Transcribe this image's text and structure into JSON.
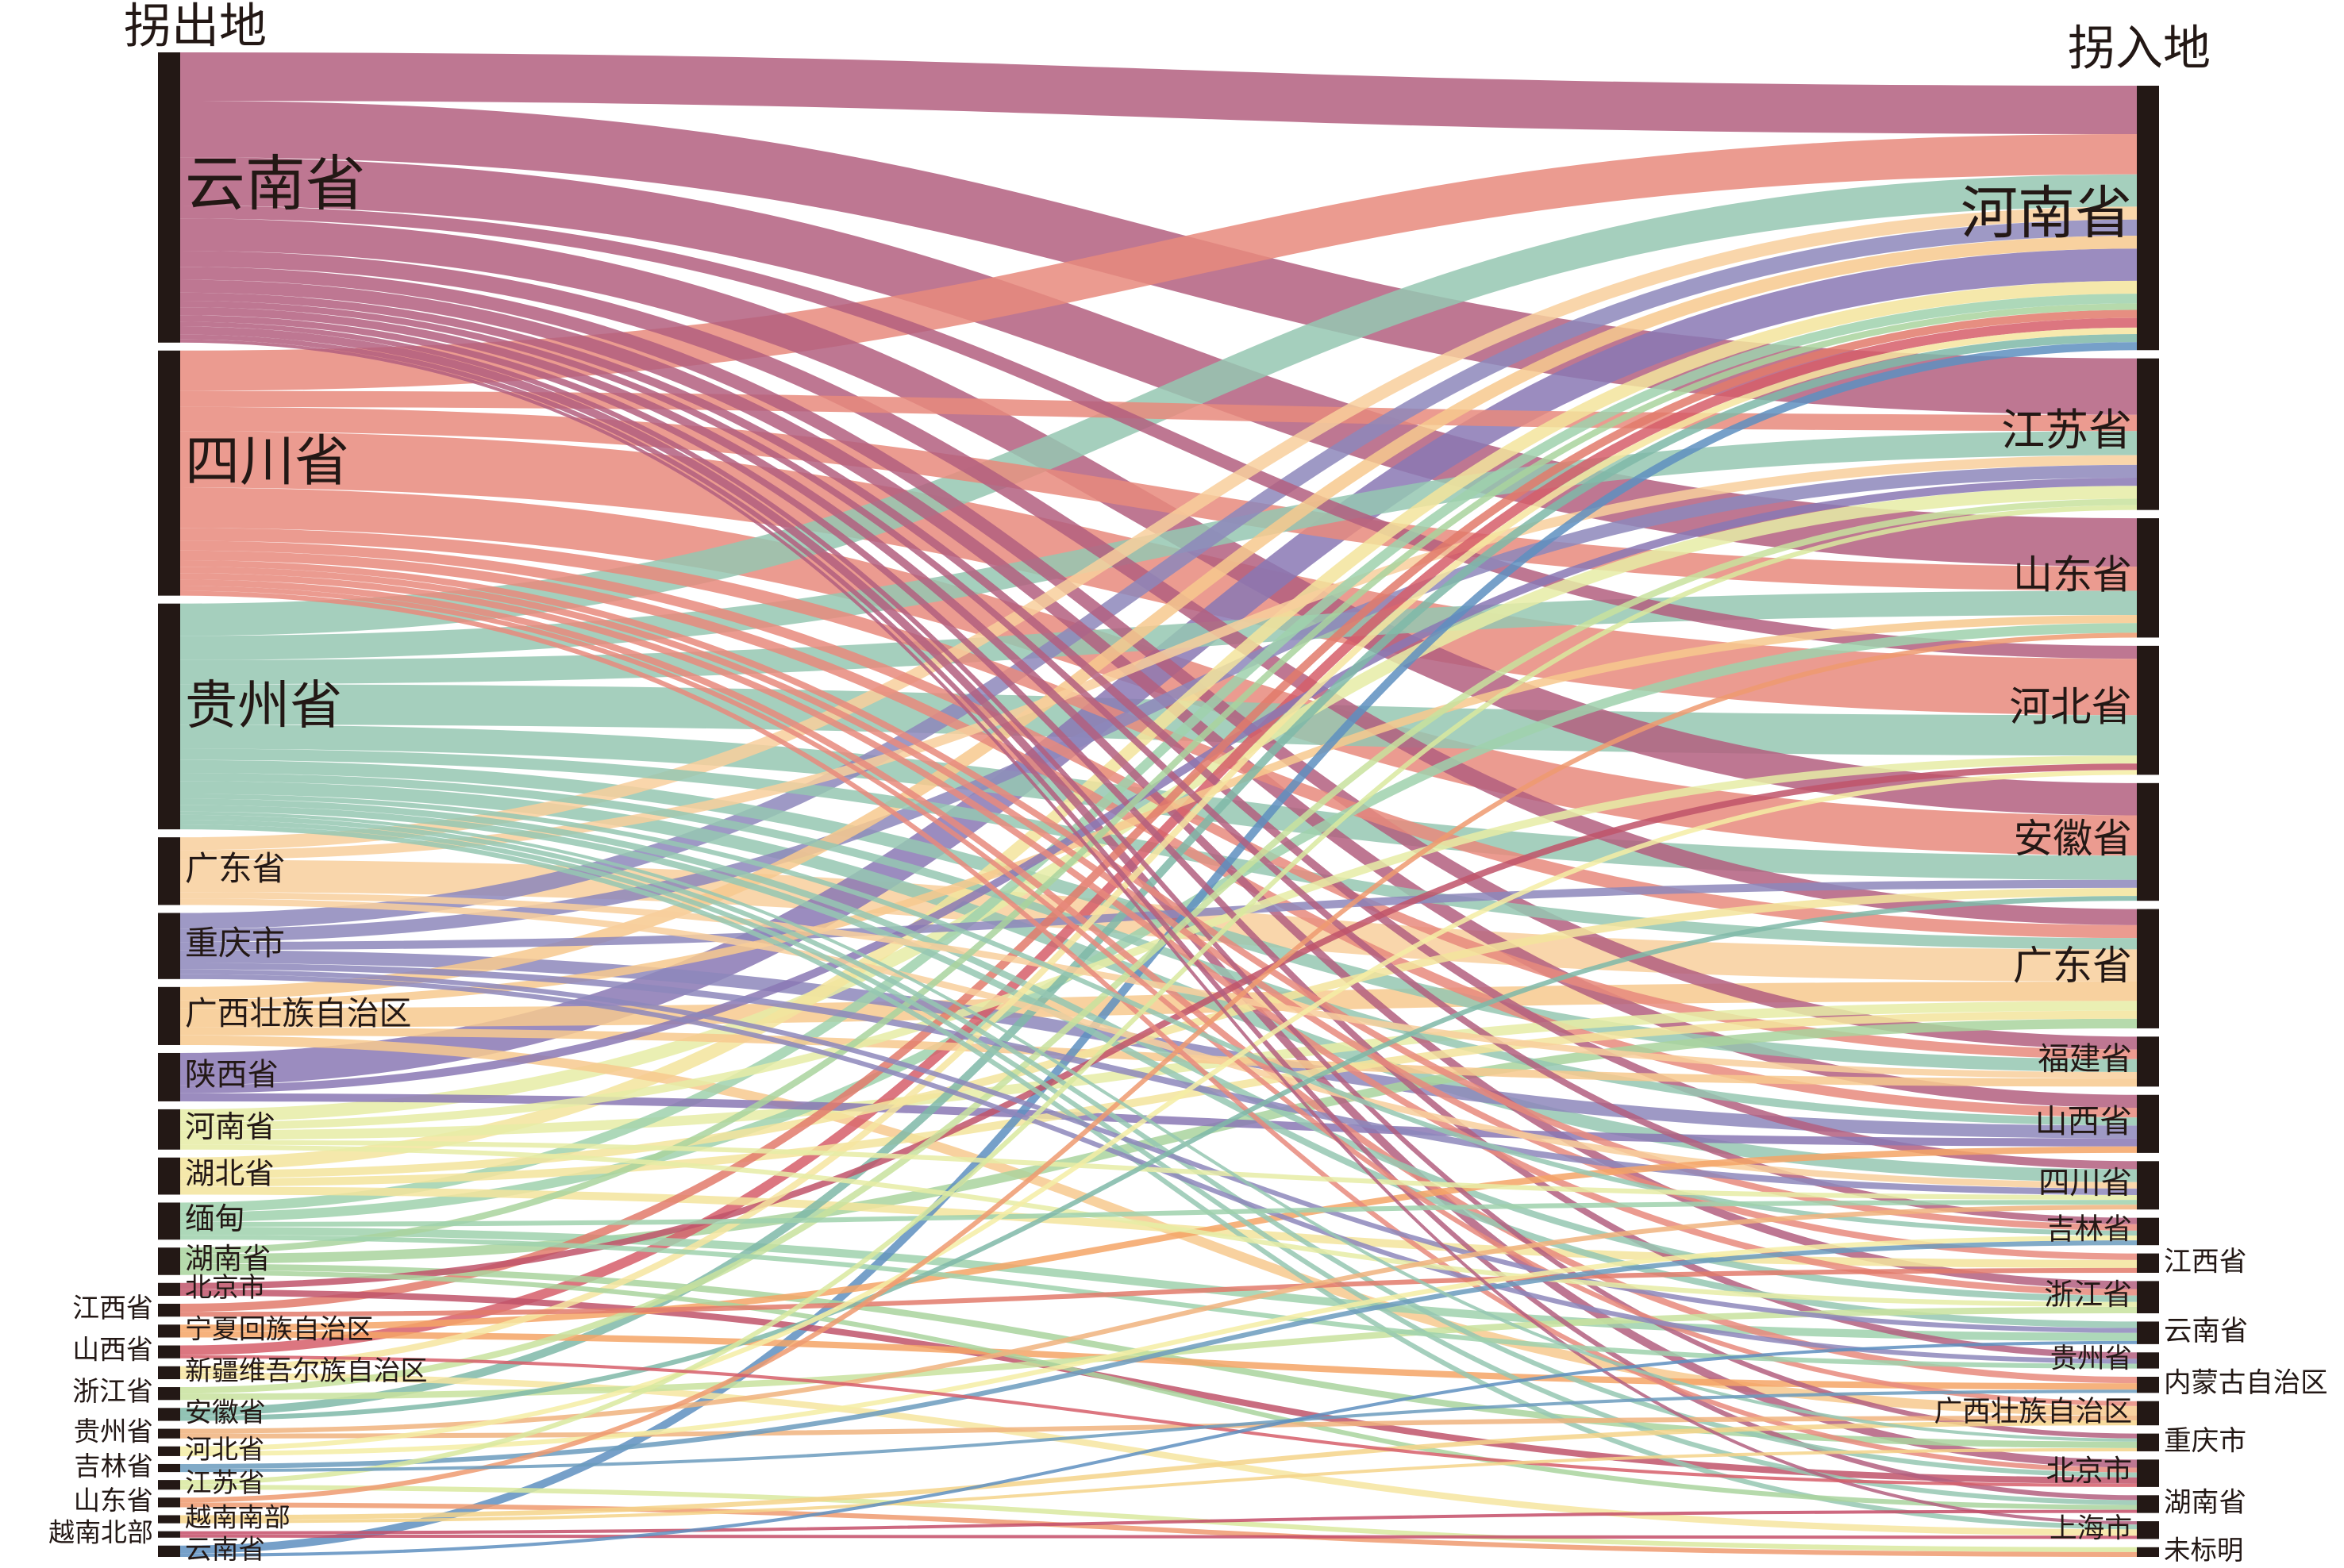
{
  "chart_data": {
    "type": "sankey",
    "source_title": "拐出地",
    "target_title": "拐入地",
    "sources": [
      {
        "name": "云南省",
        "color": "#b35f7f"
      },
      {
        "name": "四川省",
        "color": "#e88a7c"
      },
      {
        "name": "贵州省",
        "color": "#95c7b2"
      },
      {
        "name": "广东省",
        "color": "#f8cf9c"
      },
      {
        "name": "重庆市",
        "color": "#8d87bb"
      },
      {
        "name": "广西壮族自治区",
        "color": "#f7c98e"
      },
      {
        "name": "陕西省",
        "color": "#8a78b4"
      },
      {
        "name": "河南省",
        "color": "#e6eca6"
      },
      {
        "name": "湖北省",
        "color": "#f3e49c"
      },
      {
        "name": "缅甸",
        "color": "#9fd1ad"
      },
      {
        "name": "湖南省",
        "color": "#a9d49e"
      },
      {
        "name": "北京市",
        "color": "#c0546a"
      },
      {
        "name": "江西省",
        "color": "#e27a6b"
      },
      {
        "name": "宁夏回族自治区",
        "color": "#f5a566"
      },
      {
        "name": "山西省",
        "color": "#d65e6a"
      },
      {
        "name": "新疆维吾尔族自治区",
        "color": "#f6e5a0"
      },
      {
        "name": "浙江省",
        "color": "#c8e29e"
      },
      {
        "name": "安徽省",
        "color": "#7fb8a8"
      },
      {
        "name": "贵州省",
        "color": "#f0b37e"
      },
      {
        "name": "河北省",
        "color": "#f5eda5"
      },
      {
        "name": "吉林省",
        "color": "#6b9bbd"
      },
      {
        "name": "江苏省",
        "color": "#d9e99f"
      },
      {
        "name": "山东省",
        "color": "#ee9a70"
      },
      {
        "name": "越南南部",
        "color": "#f5d48a"
      },
      {
        "name": "越南北部",
        "color": "#c44d68"
      },
      {
        "name": "云南省",
        "color": "#5e8fbf"
      }
    ],
    "targets": [
      "河南省",
      "江苏省",
      "山东省",
      "河北省",
      "安徽省",
      "广东省",
      "福建省",
      "山西省",
      "四川省",
      "吉林省",
      "江西省",
      "浙江省",
      "云南省",
      "贵州省",
      "内蒙古自治区",
      "广西壮族自治区",
      "重庆市",
      "北京市",
      "湖南省",
      "上海市",
      "未标明"
    ],
    "links": [
      {
        "source": 0,
        "target": 0,
        "value": 30
      },
      {
        "source": 0,
        "target": 1,
        "value": 35
      },
      {
        "source": 0,
        "target": 2,
        "value": 30
      },
      {
        "source": 0,
        "target": 3,
        "value": 8
      },
      {
        "source": 0,
        "target": 4,
        "value": 20
      },
      {
        "source": 0,
        "target": 5,
        "value": 10
      },
      {
        "source": 0,
        "target": 6,
        "value": 8
      },
      {
        "source": 0,
        "target": 7,
        "value": 8
      },
      {
        "source": 0,
        "target": 8,
        "value": 5
      },
      {
        "source": 0,
        "target": 9,
        "value": 4
      },
      {
        "source": 0,
        "target": 11,
        "value": 5
      },
      {
        "source": 0,
        "target": 13,
        "value": 4
      },
      {
        "source": 0,
        "target": 16,
        "value": 3
      },
      {
        "source": 0,
        "target": 17,
        "value": 5
      },
      {
        "source": 0,
        "target": 18,
        "value": 3
      },
      {
        "source": 0,
        "target": 19,
        "value": 2
      },
      {
        "source": 1,
        "target": 0,
        "value": 25
      },
      {
        "source": 1,
        "target": 1,
        "value": 10
      },
      {
        "source": 1,
        "target": 2,
        "value": 15
      },
      {
        "source": 1,
        "target": 3,
        "value": 35
      },
      {
        "source": 1,
        "target": 4,
        "value": 25
      },
      {
        "source": 1,
        "target": 5,
        "value": 8
      },
      {
        "source": 1,
        "target": 6,
        "value": 6
      },
      {
        "source": 1,
        "target": 7,
        "value": 6
      },
      {
        "source": 1,
        "target": 9,
        "value": 4
      },
      {
        "source": 1,
        "target": 10,
        "value": 4
      },
      {
        "source": 1,
        "target": 11,
        "value": 4
      },
      {
        "source": 1,
        "target": 14,
        "value": 4
      },
      {
        "source": 1,
        "target": 15,
        "value": 3
      },
      {
        "source": 1,
        "target": 17,
        "value": 3
      },
      {
        "source": 2,
        "target": 0,
        "value": 20
      },
      {
        "source": 2,
        "target": 1,
        "value": 15
      },
      {
        "source": 2,
        "target": 2,
        "value": 15
      },
      {
        "source": 2,
        "target": 3,
        "value": 25
      },
      {
        "source": 2,
        "target": 4,
        "value": 15
      },
      {
        "source": 2,
        "target": 5,
        "value": 7
      },
      {
        "source": 2,
        "target": 6,
        "value": 8
      },
      {
        "source": 2,
        "target": 7,
        "value": 5
      },
      {
        "source": 2,
        "target": 8,
        "value": 8
      },
      {
        "source": 2,
        "target": 9,
        "value": 3
      },
      {
        "source": 2,
        "target": 11,
        "value": 4
      },
      {
        "source": 2,
        "target": 12,
        "value": 4
      },
      {
        "source": 2,
        "target": 16,
        "value": 2
      },
      {
        "source": 2,
        "target": 17,
        "value": 3
      },
      {
        "source": 2,
        "target": 18,
        "value": 3
      },
      {
        "source": 2,
        "target": 19,
        "value": 3
      },
      {
        "source": 3,
        "target": 0,
        "value": 8
      },
      {
        "source": 3,
        "target": 1,
        "value": 6
      },
      {
        "source": 3,
        "target": 5,
        "value": 20
      },
      {
        "source": 3,
        "target": 6,
        "value": 4
      },
      {
        "source": 3,
        "target": 8,
        "value": 4
      },
      {
        "source": 4,
        "target": 0,
        "value": 10
      },
      {
        "source": 4,
        "target": 1,
        "value": 8
      },
      {
        "source": 4,
        "target": 4,
        "value": 5
      },
      {
        "source": 4,
        "target": 7,
        "value": 8
      },
      {
        "source": 4,
        "target": 8,
        "value": 4
      },
      {
        "source": 4,
        "target": 12,
        "value": 3
      },
      {
        "source": 4,
        "target": 13,
        "value": 3
      },
      {
        "source": 5,
        "target": 0,
        "value": 8
      },
      {
        "source": 5,
        "target": 2,
        "value": 5
      },
      {
        "source": 5,
        "target": 5,
        "value": 12
      },
      {
        "source": 5,
        "target": 6,
        "value": 5
      },
      {
        "source": 5,
        "target": 15,
        "value": 6
      },
      {
        "source": 6,
        "target": 0,
        "value": 20
      },
      {
        "source": 6,
        "target": 1,
        "value": 5
      },
      {
        "source": 6,
        "target": 7,
        "value": 5
      },
      {
        "source": 7,
        "target": 1,
        "value": 8
      },
      {
        "source": 7,
        "target": 3,
        "value": 5
      },
      {
        "source": 7,
        "target": 5,
        "value": 6
      },
      {
        "source": 7,
        "target": 8,
        "value": 3
      },
      {
        "source": 7,
        "target": 11,
        "value": 3
      },
      {
        "source": 8,
        "target": 0,
        "value": 8
      },
      {
        "source": 8,
        "target": 4,
        "value": 5
      },
      {
        "source": 8,
        "target": 5,
        "value": 5
      },
      {
        "source": 8,
        "target": 10,
        "value": 5
      },
      {
        "source": 9,
        "target": 0,
        "value": 6
      },
      {
        "source": 9,
        "target": 2,
        "value": 6
      },
      {
        "source": 9,
        "target": 8,
        "value": 3
      },
      {
        "source": 9,
        "target": 12,
        "value": 5
      },
      {
        "source": 9,
        "target": 13,
        "value": 3
      },
      {
        "source": 10,
        "target": 0,
        "value": 4
      },
      {
        "source": 10,
        "target": 5,
        "value": 6
      },
      {
        "source": 10,
        "target": 16,
        "value": 4
      },
      {
        "source": 10,
        "target": 18,
        "value": 3
      },
      {
        "source": 11,
        "target": 3,
        "value": 4
      },
      {
        "source": 11,
        "target": 17,
        "value": 4
      },
      {
        "source": 12,
        "target": 0,
        "value": 5
      },
      {
        "source": 12,
        "target": 10,
        "value": 3
      },
      {
        "source": 13,
        "target": 7,
        "value": 4
      },
      {
        "source": 13,
        "target": 14,
        "value": 4
      },
      {
        "source": 14,
        "target": 0,
        "value": 6
      },
      {
        "source": 14,
        "target": 17,
        "value": 2
      },
      {
        "source": 15,
        "target": 0,
        "value": 4
      },
      {
        "source": 15,
        "target": 19,
        "value": 4
      },
      {
        "source": 16,
        "target": 1,
        "value": 4
      },
      {
        "source": 16,
        "target": 11,
        "value": 4
      },
      {
        "source": 17,
        "target": 0,
        "value": 5
      },
      {
        "source": 17,
        "target": 4,
        "value": 3
      },
      {
        "source": 18,
        "target": 8,
        "value": 3
      },
      {
        "source": 18,
        "target": 15,
        "value": 3
      },
      {
        "source": 19,
        "target": 3,
        "value": 3
      },
      {
        "source": 19,
        "target": 9,
        "value": 3
      },
      {
        "source": 20,
        "target": 9,
        "value": 3
      },
      {
        "source": 20,
        "target": 14,
        "value": 2
      },
      {
        "source": 21,
        "target": 1,
        "value": 3
      },
      {
        "source": 21,
        "target": 20,
        "value": 3
      },
      {
        "source": 22,
        "target": 2,
        "value": 3
      },
      {
        "source": 22,
        "target": 20,
        "value": 3
      },
      {
        "source": 23,
        "target": 15,
        "value": 3
      },
      {
        "source": 23,
        "target": 16,
        "value": 2
      },
      {
        "source": 24,
        "target": 18,
        "value": 2
      },
      {
        "source": 24,
        "target": 19,
        "value": 2
      },
      {
        "source": 25,
        "target": 0,
        "value": 5
      },
      {
        "source": 25,
        "target": 12,
        "value": 2
      }
    ]
  }
}
